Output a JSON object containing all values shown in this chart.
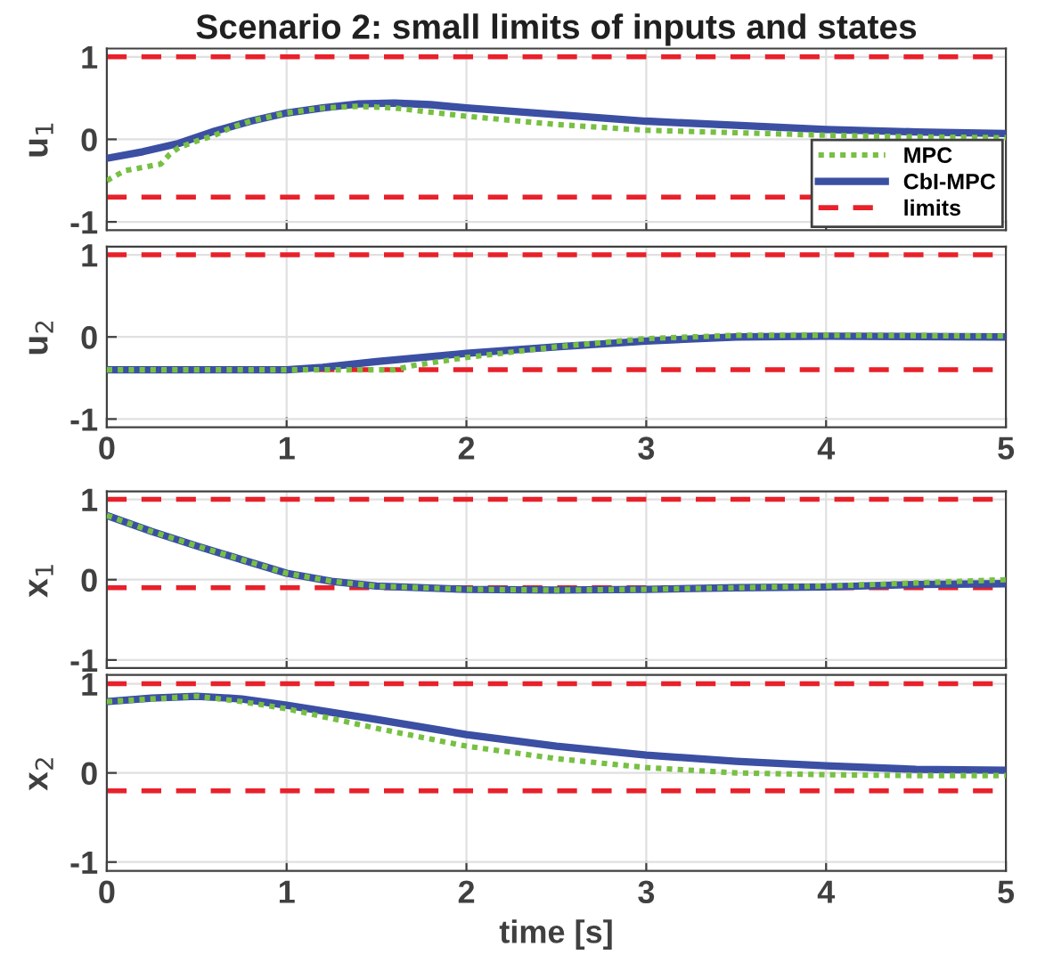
{
  "chart_data": [
    {
      "type": "line",
      "title": "Scenario 2: small limits of inputs and states",
      "ylabel": "u$_{1}$",
      "xlim": [
        0,
        5
      ],
      "ylim": [
        -1.1,
        1.1
      ],
      "xticks": [
        0,
        1,
        2,
        3,
        4,
        5
      ],
      "yticks": [
        -1,
        0,
        1
      ],
      "tick_labels": "y",
      "grid": true,
      "legend": "bottom right",
      "series": [
        {
          "name": "MPC",
          "color": "#77c043",
          "line_style": "dotted",
          "x": [
            0,
            0.1,
            0.25,
            0.3,
            0.35,
            0.4,
            0.5,
            0.6,
            0.7,
            0.8,
            1.0,
            1.2,
            1.4,
            1.6,
            1.8,
            2.0,
            2.5,
            3.0,
            3.5,
            4.0,
            4.5,
            5
          ],
          "values": [
            -0.5,
            -0.38,
            -0.32,
            -0.3,
            -0.18,
            -0.1,
            -0.02,
            0.05,
            0.15,
            0.22,
            0.32,
            0.38,
            0.4,
            0.38,
            0.33,
            0.28,
            0.18,
            0.11,
            0.08,
            0.05,
            0.03,
            0.02
          ]
        },
        {
          "name": "CbI-MPC",
          "color": "#3b4fa3",
          "line_style": "solid",
          "x": [
            0,
            0.2,
            0.4,
            0.6,
            0.8,
            1.0,
            1.2,
            1.4,
            1.6,
            1.8,
            2.0,
            2.5,
            3.0,
            3.5,
            4.0,
            4.5,
            5
          ],
          "values": [
            -0.23,
            -0.15,
            -0.05,
            0.1,
            0.22,
            0.32,
            0.38,
            0.43,
            0.44,
            0.42,
            0.38,
            0.3,
            0.22,
            0.17,
            0.12,
            0.09,
            0.07
          ]
        }
      ],
      "ref_lines": [
        {
          "axis": "y",
          "value": 1,
          "label": "limits",
          "color": "#e8212a",
          "line_style": "dashed"
        },
        {
          "axis": "y",
          "value": -0.7,
          "color": "#e8212a",
          "line_style": "dashed"
        }
      ]
    },
    {
      "type": "line",
      "ylabel": "u$_{2}$",
      "xlim": [
        0,
        5
      ],
      "ylim": [
        -1.1,
        1.1
      ],
      "xticks": [
        0,
        1,
        2,
        3,
        4,
        5
      ],
      "yticks": [
        -1,
        0,
        1
      ],
      "grid": true,
      "series": [
        {
          "color": "#77c043",
          "line_style": "dotted",
          "x": [
            0,
            1.0,
            1.6,
            1.7,
            2.0,
            2.5,
            3.0,
            3.5,
            4.0,
            5
          ],
          "values": [
            -0.4,
            -0.4,
            -0.4,
            -0.35,
            -0.25,
            -0.12,
            -0.02,
            0.02,
            0.02,
            0.01
          ]
        },
        {
          "color": "#3b4fa3",
          "line_style": "solid",
          "x": [
            0,
            1.0,
            1.2,
            1.5,
            2.0,
            2.5,
            3.0,
            3.5,
            4.0,
            5
          ],
          "values": [
            -0.4,
            -0.4,
            -0.37,
            -0.3,
            -0.2,
            -0.12,
            -0.05,
            0,
            0.01,
            0
          ]
        }
      ],
      "ref_lines": [
        {
          "axis": "y",
          "value": 1,
          "color": "#e8212a",
          "line_style": "dashed"
        },
        {
          "axis": "y",
          "value": -0.4,
          "color": "#e8212a",
          "line_style": "dashed"
        }
      ]
    },
    {
      "type": "line",
      "ylabel": "x$_{1}$",
      "xlim": [
        0,
        5
      ],
      "ylim": [
        -1.1,
        1.1
      ],
      "xticks": [
        0,
        1,
        2,
        3,
        4,
        5
      ],
      "yticks": [
        -1,
        0,
        1
      ],
      "tick_labels": "y",
      "grid": true,
      "series": [
        {
          "color": "#77c043",
          "line_style": "dotted",
          "x": [
            0,
            0.25,
            0.5,
            0.75,
            1.0,
            1.25,
            1.5,
            2.0,
            2.5,
            3.0,
            3.5,
            4.0,
            4.5,
            5
          ],
          "values": [
            0.8,
            0.6,
            0.42,
            0.25,
            0.08,
            -0.02,
            -0.08,
            -0.12,
            -0.13,
            -0.12,
            -0.1,
            -0.08,
            -0.04,
            0.0
          ]
        },
        {
          "color": "#3b4fa3",
          "line_style": "solid",
          "x": [
            0,
            0.25,
            0.5,
            0.75,
            1.0,
            1.25,
            1.5,
            2.0,
            2.5,
            3.0,
            3.5,
            4.0,
            4.5,
            5
          ],
          "values": [
            0.8,
            0.6,
            0.42,
            0.25,
            0.08,
            -0.02,
            -0.08,
            -0.12,
            -0.13,
            -0.12,
            -0.1,
            -0.09,
            -0.06,
            -0.05
          ]
        }
      ],
      "ref_lines": [
        {
          "axis": "y",
          "value": 1,
          "color": "#e8212a",
          "line_style": "dashed"
        },
        {
          "axis": "y",
          "value": -0.1,
          "color": "#e8212a",
          "line_style": "dashed"
        }
      ]
    },
    {
      "type": "line",
      "ylabel": "x$_{2}$",
      "xlabel": "time [s]",
      "xlim": [
        0,
        5
      ],
      "ylim": [
        -1.1,
        1.1
      ],
      "xticks": [
        0,
        1,
        2,
        3,
        4,
        5
      ],
      "yticks": [
        -1,
        0,
        1
      ],
      "grid": true,
      "series": [
        {
          "color": "#77c043",
          "line_style": "dotted",
          "x": [
            0,
            0.5,
            0.75,
            1.0,
            1.5,
            2.0,
            2.5,
            3.0,
            3.5,
            4.0,
            4.5,
            5
          ],
          "values": [
            0.8,
            0.86,
            0.8,
            0.72,
            0.5,
            0.3,
            0.16,
            0.06,
            0.0,
            -0.02,
            -0.03,
            -0.03
          ]
        },
        {
          "color": "#3b4fa3",
          "line_style": "solid",
          "x": [
            0,
            0.25,
            0.5,
            0.75,
            1.0,
            1.5,
            2.0,
            2.5,
            3.0,
            3.5,
            4.0,
            4.5,
            5
          ],
          "values": [
            0.8,
            0.84,
            0.86,
            0.83,
            0.76,
            0.6,
            0.43,
            0.3,
            0.2,
            0.13,
            0.08,
            0.04,
            0.03
          ]
        }
      ],
      "ref_lines": [
        {
          "axis": "y",
          "value": 1,
          "color": "#e8212a",
          "line_style": "dashed"
        },
        {
          "axis": "y",
          "value": -0.2,
          "color": "#e8212a",
          "line_style": "dashed"
        }
      ]
    }
  ]
}
